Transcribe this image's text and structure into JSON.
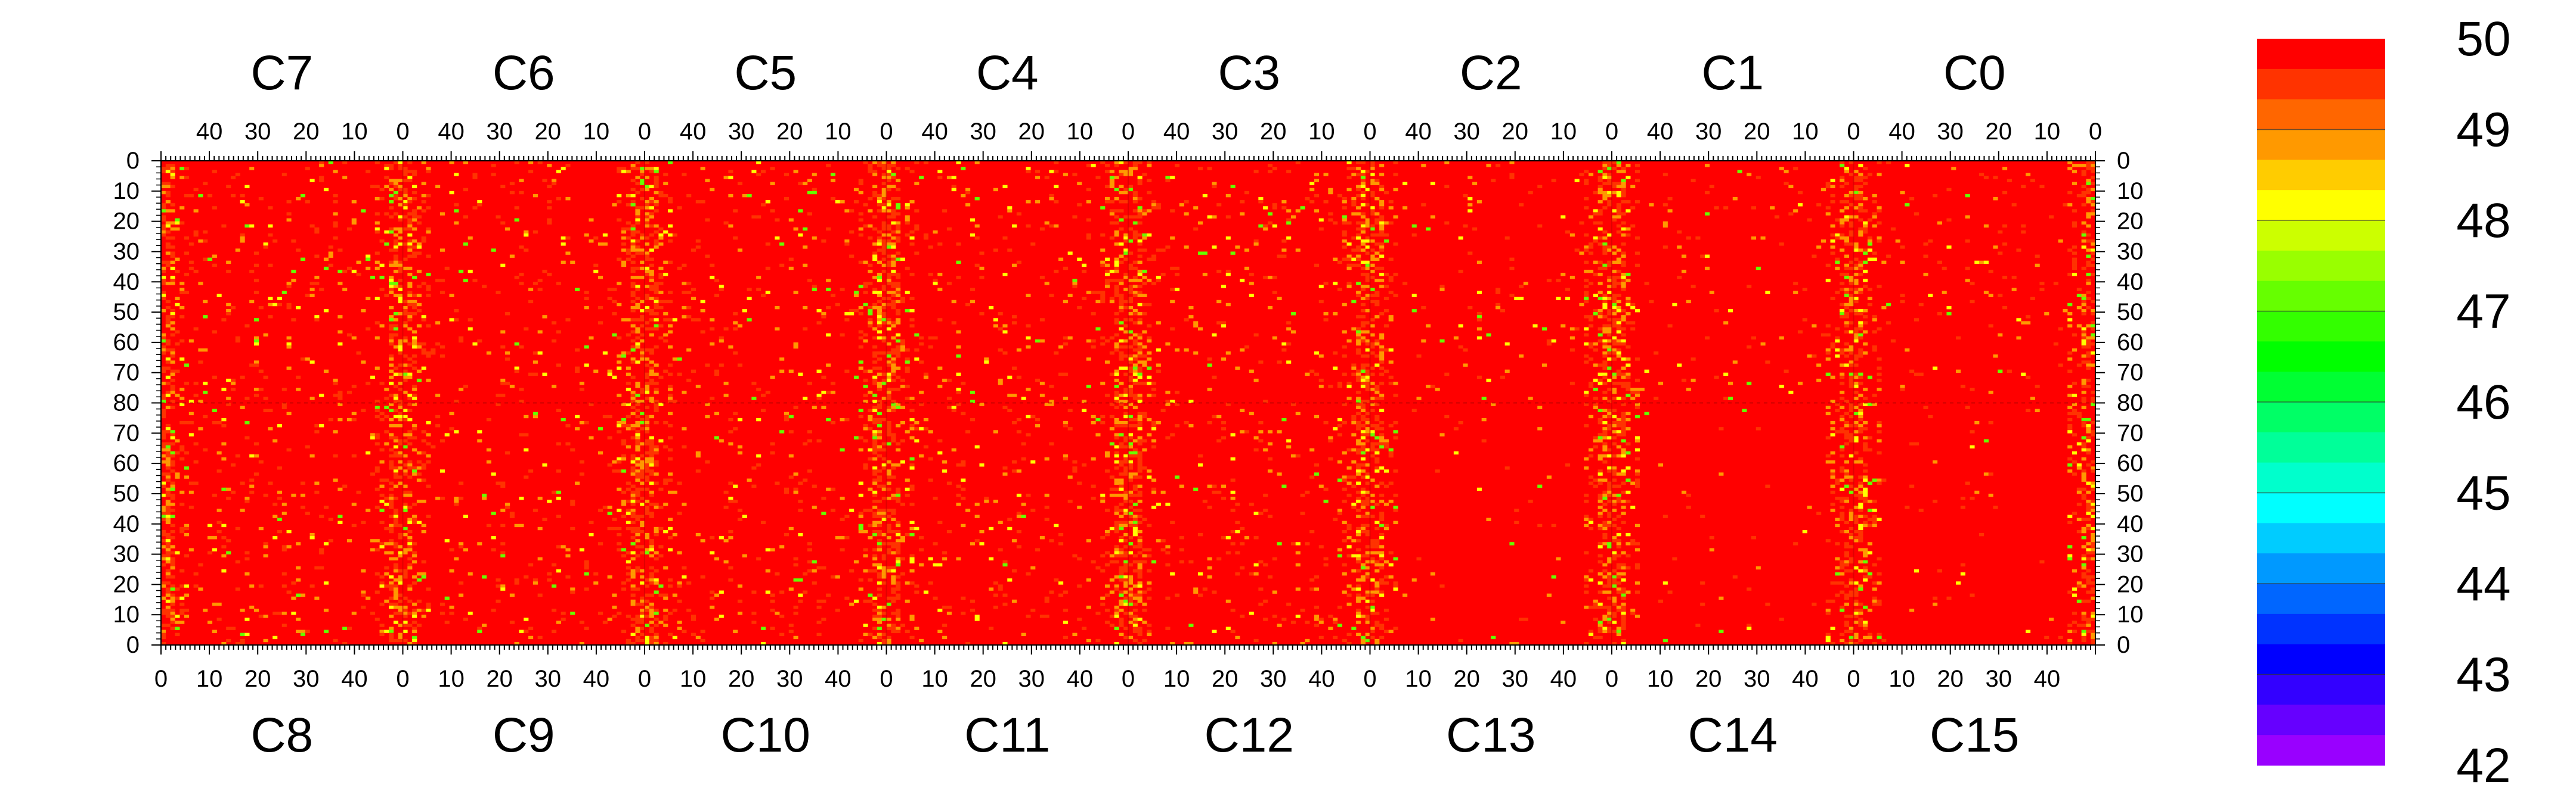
{
  "chart_data": {
    "type": "heatmap",
    "chips_top": [
      "C7",
      "C6",
      "C5",
      "C4",
      "C3",
      "C2",
      "C1",
      "C0"
    ],
    "chips_bottom": [
      "C8",
      "C9",
      "C10",
      "C11",
      "C12",
      "C13",
      "C14",
      "C15"
    ],
    "top_x_ticks": [
      "40",
      "30",
      "20",
      "10",
      "0"
    ],
    "top_x_tick_values": [
      40,
      30,
      20,
      10,
      0
    ],
    "bottom_x_ticks": [
      "0",
      "10",
      "20",
      "30",
      "40"
    ],
    "bottom_x_tick_values": [
      0,
      10,
      20,
      30,
      40
    ],
    "y_ticks_top_half": [
      "0",
      "10",
      "20",
      "30",
      "40",
      "50",
      "60",
      "70",
      "80"
    ],
    "y_ticks_bottom_half": [
      "70",
      "60",
      "50",
      "40",
      "30",
      "20",
      "10",
      "0"
    ],
    "columns_per_chip": 52,
    "rows_per_half": 80,
    "zlim": [
      42,
      50
    ],
    "colorbar": {
      "labels": [
        "50",
        "49",
        "48",
        "47",
        "46",
        "45",
        "44",
        "43",
        "42"
      ],
      "label_values": [
        50,
        49,
        48,
        47,
        46,
        45,
        44,
        43,
        42
      ],
      "colors": [
        "#ff0000",
        "#ff3300",
        "#ff6600",
        "#ff9900",
        "#ffcc00",
        "#ffff00",
        "#ccff00",
        "#99ff00",
        "#66ff00",
        "#33ff00",
        "#00ff00",
        "#00ff33",
        "#00ff66",
        "#00ff99",
        "#00ffcc",
        "#00ffff",
        "#00ccff",
        "#0099ff",
        "#0066ff",
        "#0033ff",
        "#0000ff",
        "#3300ff",
        "#6600ff",
        "#9900ff"
      ]
    },
    "value_summary": {
      "dominant_value": 50,
      "typical_min": 47,
      "description_hint": "Mostly saturated at 50 with sparse lower-value pixels; stronger variation near chip boundaries."
    },
    "legend": "right"
  }
}
